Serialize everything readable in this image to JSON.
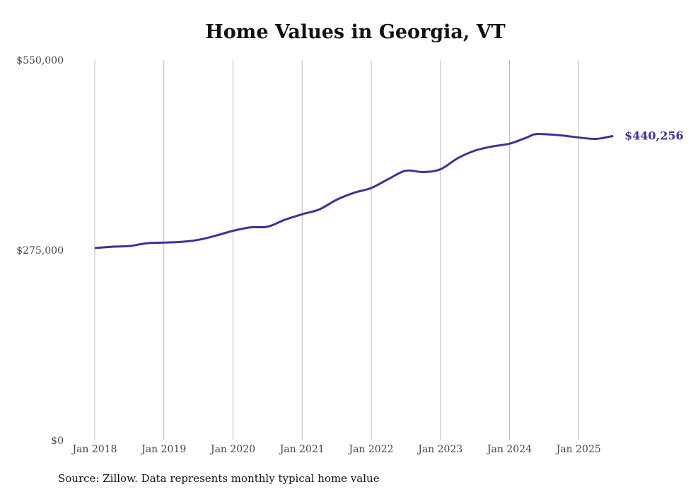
{
  "chart_data": {
    "type": "line",
    "title": "Home Values in Georgia, VT",
    "xlabel": "",
    "ylabel": "",
    "ylim": [
      0,
      550000
    ],
    "y_ticks": [
      {
        "value": 0,
        "label": "$0"
      },
      {
        "value": 275000,
        "label": "$275,000"
      },
      {
        "value": 550000,
        "label": "$550,000"
      }
    ],
    "x_ticks": [
      {
        "value": 2018,
        "label": "Jan 2018"
      },
      {
        "value": 2019,
        "label": "Jan 2019"
      },
      {
        "value": 2020,
        "label": "Jan 2020"
      },
      {
        "value": 2021,
        "label": "Jan 2021"
      },
      {
        "value": 2022,
        "label": "Jan 2022"
      },
      {
        "value": 2023,
        "label": "Jan 2023"
      },
      {
        "value": 2024,
        "label": "Jan 2024"
      },
      {
        "value": 2025,
        "label": "Jan 2025"
      }
    ],
    "grid": "vertical",
    "series": [
      {
        "name": "Typical home value",
        "color": "#3a3397",
        "x": [
          2018.0,
          2018.25,
          2018.5,
          2018.75,
          2019.0,
          2019.25,
          2019.5,
          2019.75,
          2020.0,
          2020.25,
          2020.5,
          2020.75,
          2021.0,
          2021.25,
          2021.5,
          2021.75,
          2022.0,
          2022.25,
          2022.5,
          2022.75,
          2023.0,
          2023.25,
          2023.5,
          2023.75,
          2024.0,
          2024.25,
          2024.4,
          2024.75,
          2025.0,
          2025.25,
          2025.5
        ],
        "values": [
          278000,
          280000,
          281000,
          285000,
          286000,
          287000,
          290000,
          296000,
          303000,
          308000,
          309000,
          319000,
          327000,
          334000,
          348000,
          358000,
          365000,
          378000,
          390000,
          388000,
          392000,
          408000,
          419000,
          425000,
          429000,
          438000,
          443000,
          441000,
          438000,
          436000,
          440256
        ]
      }
    ],
    "end_label": "$440,256"
  },
  "source": "Source: Zillow. Data represents monthly typical home value"
}
